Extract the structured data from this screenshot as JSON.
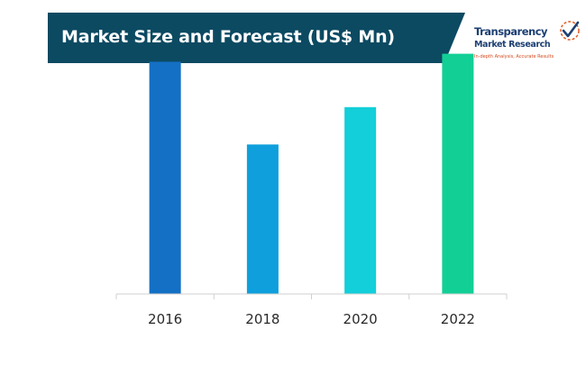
{
  "header": {
    "title": "Market Size and Forecast (US$ Mn)",
    "banner_color": "#0c4a62"
  },
  "logo": {
    "name": "Transparency",
    "name_line2": "Market Research",
    "tagline": "In-depth Analysis, Accurate Results"
  },
  "chart_data": {
    "type": "bar",
    "title": "Market Size and Forecast (US$ Mn)",
    "categories": [
      "2016",
      "2018",
      "2020",
      "2022"
    ],
    "values": [
      87,
      56,
      70,
      90
    ],
    "ylim": [
      0,
      100
    ],
    "colors": [
      "#1470c4",
      "#0f9fdc",
      "#12cfd9",
      "#12cf96"
    ],
    "grid": false,
    "legend": "none"
  }
}
